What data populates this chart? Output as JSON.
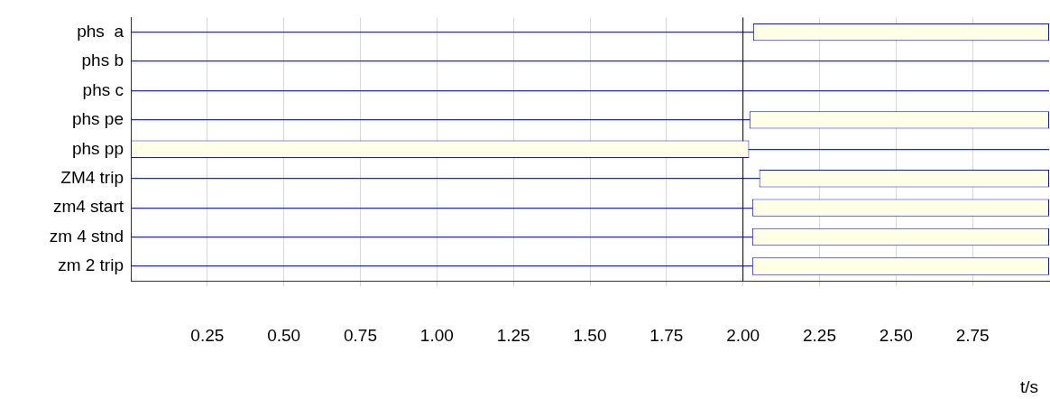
{
  "chart_data": {
    "type": "bar",
    "orientation": "horizontal",
    "xlabel": "t/s",
    "categories": [
      "phs  a",
      "phs b",
      "phs c",
      "phs pe",
      "phs pp",
      "ZM4 trip",
      "zm4 start",
      "zm 4 stnd",
      "zm 2 trip"
    ],
    "base": [
      2.033,
      null,
      null,
      2.021,
      0,
      2.053,
      2.03,
      2.03,
      2.03
    ],
    "values": [
      0.967,
      null,
      null,
      0.979,
      2.02,
      0.947,
      0.97,
      0.97,
      0.97
    ],
    "color": "#ffffe6",
    "xlim": [
      0,
      3
    ],
    "xticks": [
      0.25,
      {
        "value": 0.5,
        "label": "0.50"
      },
      0.75,
      {
        "value": 1,
        "label": "1.00"
      },
      1.25,
      {
        "value": 1.5,
        "label": "1.50"
      },
      1.75,
      {
        "value": 2,
        "label": "2.00"
      },
      2.25,
      {
        "value": 2.5,
        "label": "2.50"
      },
      2.75
    ],
    "ref_lines": [
      {
        "axis": "x",
        "value": 2,
        "color": "#000000"
      }
    ],
    "grid": true,
    "legend": false
  }
}
